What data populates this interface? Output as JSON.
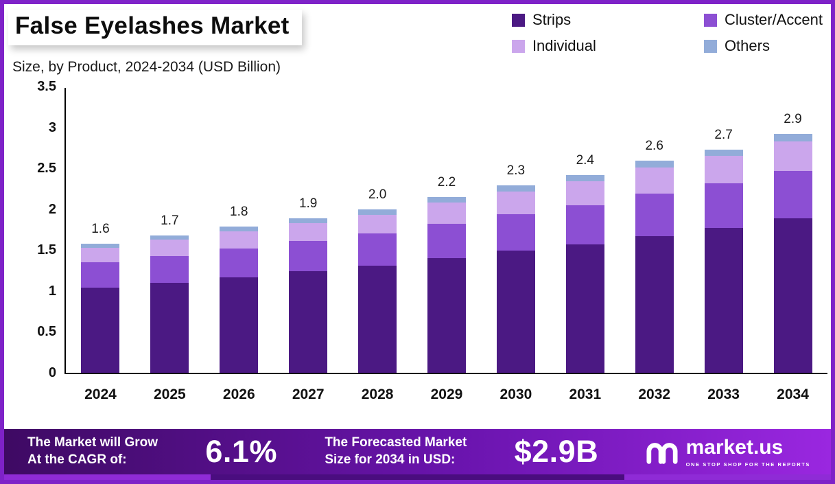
{
  "header": {
    "title": "False Eyelashes Market",
    "subtitle": "Size, by Product, 2024-2034 (USD Billion)"
  },
  "legend": [
    {
      "label": "Strips",
      "color": "#4B1983"
    },
    {
      "label": "Cluster/Accent",
      "color": "#8C4FD3"
    },
    {
      "label": "Individual",
      "color": "#CBA6EC"
    },
    {
      "label": "Others",
      "color": "#92ACD9"
    }
  ],
  "chart_data": {
    "type": "bar",
    "stacked": true,
    "title": "False Eyelashes Market",
    "subtitle": "Size, by Product, 2024-2034 (USD Billion)",
    "unit": "USD Billion",
    "categories": [
      "2024",
      "2025",
      "2026",
      "2027",
      "2028",
      "2029",
      "2030",
      "2031",
      "2032",
      "2033",
      "2034"
    ],
    "series": [
      {
        "name": "Strips",
        "color": "#4B1983",
        "values": [
          1.04,
          1.1,
          1.17,
          1.24,
          1.31,
          1.4,
          1.49,
          1.57,
          1.67,
          1.77,
          1.89
        ]
      },
      {
        "name": "Cluster/Accent",
        "color": "#8C4FD3",
        "values": [
          0.31,
          0.33,
          0.35,
          0.37,
          0.39,
          0.42,
          0.45,
          0.48,
          0.52,
          0.55,
          0.58
        ]
      },
      {
        "name": "Individual",
        "color": "#CBA6EC",
        "values": [
          0.18,
          0.2,
          0.21,
          0.22,
          0.23,
          0.26,
          0.28,
          0.29,
          0.32,
          0.33,
          0.36
        ]
      },
      {
        "name": "Others",
        "color": "#92ACD9",
        "values": [
          0.05,
          0.05,
          0.06,
          0.06,
          0.07,
          0.07,
          0.07,
          0.08,
          0.08,
          0.08,
          0.09
        ]
      }
    ],
    "totals": [
      1.6,
      1.7,
      1.8,
      1.9,
      2.0,
      2.2,
      2.3,
      2.4,
      2.6,
      2.7,
      2.9
    ],
    "total_labels": [
      "1.6",
      "1.7",
      "1.8",
      "1.9",
      "2.0",
      "2.2",
      "2.3",
      "2.4",
      "2.6",
      "2.7",
      "2.9"
    ],
    "ylim": [
      0,
      3.5
    ],
    "yticks": [
      "3.5",
      "3",
      "2.5",
      "2",
      "1.5",
      "1",
      "0.5",
      "0"
    ],
    "xlabel": "",
    "ylabel": "",
    "grid": false,
    "legend_position": "top-right"
  },
  "footer": {
    "cagr_line1": "The Market will Grow",
    "cagr_line2": "At the CAGR of:",
    "cagr_value": "6.1%",
    "forecast_line1": "The Forecasted Market",
    "forecast_line2": "Size for 2034 in USD:",
    "forecast_value": "$2.9B",
    "brand_name": "market.us",
    "brand_tagline": "ONE STOP SHOP FOR THE REPORTS"
  },
  "colors": {
    "frame": "#7E22C8",
    "banner_gradient_start": "#3E0A63",
    "banner_gradient_end": "#9A27E0",
    "axis": "#000000"
  }
}
